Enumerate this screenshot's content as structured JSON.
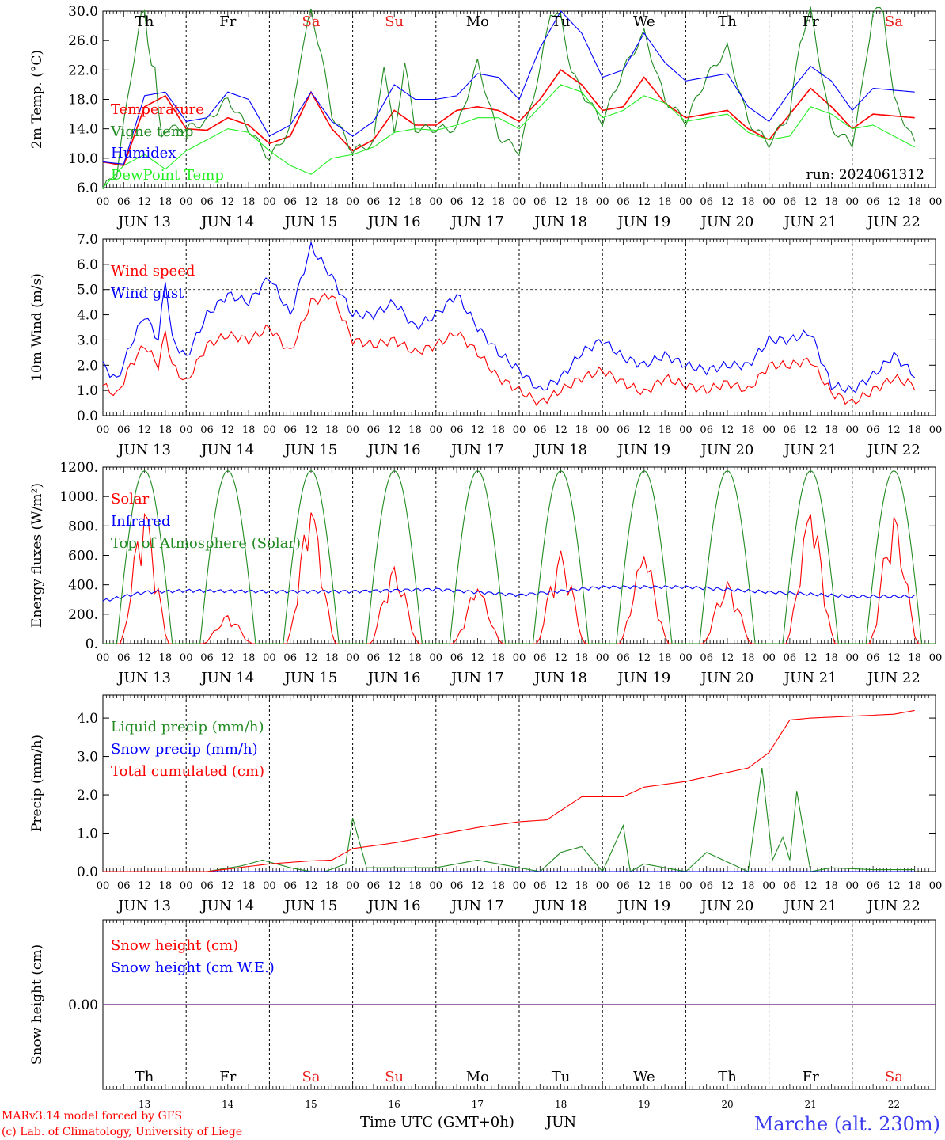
{
  "run_label": "run: 2024061312",
  "footer": {
    "model": "MARv3.14 model forced by GFS",
    "copyright": "(c) Lab. of Climatology, University of Liege",
    "axis_title": "Time UTC (GMT+0h)",
    "month": "JUN",
    "location": "Marche (alt. 230m)"
  },
  "colors": {
    "weekday": "#000000",
    "weekend": "#e8201c",
    "red": "#ff0000",
    "green": "#228b22",
    "blue": "#0000ff",
    "lightgreen": "#22ee22",
    "purple": "#7a3a8a",
    "location": "#3a3aee"
  },
  "days": [
    {
      "abbr": "Th",
      "date": "13",
      "label": "JUN 13",
      "weekend": false
    },
    {
      "abbr": "Fr",
      "date": "14",
      "label": "JUN 14",
      "weekend": false
    },
    {
      "abbr": "Sa",
      "date": "15",
      "label": "JUN 15",
      "weekend": true
    },
    {
      "abbr": "Su",
      "date": "16",
      "label": "JUN 16",
      "weekend": true
    },
    {
      "abbr": "Mo",
      "date": "17",
      "label": "JUN 17",
      "weekend": false
    },
    {
      "abbr": "Tu",
      "date": "18",
      "label": "JUN 18",
      "weekend": false
    },
    {
      "abbr": "We",
      "date": "19",
      "label": "JUN 19",
      "weekend": false
    },
    {
      "abbr": "Th",
      "date": "20",
      "label": "JUN 20",
      "weekend": false
    },
    {
      "abbr": "Fr",
      "date": "21",
      "label": "JUN 21",
      "weekend": false
    },
    {
      "abbr": "Sa",
      "date": "22",
      "label": "JUN 22",
      "weekend": true
    }
  ],
  "hour_ticks": [
    "00",
    "06",
    "12",
    "18"
  ],
  "chart_data": [
    {
      "type": "line",
      "ylabel": "2m Temp. (°C)",
      "ylim": [
        6,
        30
      ],
      "yticks": [
        "6.0",
        "10.0",
        "14.0",
        "18.0",
        "22.0",
        "26.0",
        "30.0"
      ],
      "x_unit": "hours since Jun 13 00 UTC",
      "series": [
        {
          "name": "Temperature",
          "color": "red",
          "x": [
            0,
            6,
            12,
            18,
            24,
            30,
            36,
            42,
            48,
            54,
            60,
            66,
            72,
            78,
            84,
            90,
            96,
            102,
            108,
            114,
            120,
            126,
            132,
            138,
            144,
            150,
            156,
            162,
            168,
            174,
            180,
            186,
            192,
            198,
            204,
            210,
            216,
            222,
            234
          ],
          "y": [
            9.5,
            9.0,
            17.0,
            18.5,
            14.0,
            13.8,
            15.5,
            14.5,
            12.0,
            13.0,
            19.0,
            14.0,
            11.0,
            12.5,
            16.5,
            14.5,
            14.5,
            16.5,
            17.0,
            16.5,
            15.0,
            18.0,
            22.0,
            20.0,
            16.5,
            17.0,
            21.0,
            17.5,
            15.5,
            16.0,
            16.5,
            14.0,
            12.5,
            16.0,
            19.5,
            17.0,
            14.0,
            16.0,
            15.5
          ]
        },
        {
          "name": "Vigne temp",
          "color": "green",
          "x": [
            0,
            4,
            8,
            11,
            12,
            13,
            14,
            15,
            16,
            17,
            18,
            21,
            24,
            30,
            36,
            42,
            48,
            54,
            57,
            60,
            63,
            66,
            72,
            78,
            81,
            84,
            87,
            90,
            96,
            102,
            108,
            114,
            120,
            126,
            129,
            132,
            135,
            138,
            144,
            150,
            156,
            162,
            168,
            174,
            180,
            186,
            192,
            198,
            201,
            204,
            207,
            210,
            216,
            219,
            222,
            225,
            228,
            234
          ],
          "y": [
            5.8,
            8.0,
            21.0,
            29.0,
            30.0,
            26.0,
            23.0,
            22.0,
            16.0,
            13.0,
            14.0,
            14.0,
            14.0,
            15.0,
            18.0,
            14.0,
            10.0,
            14.0,
            24.0,
            30.0,
            24.0,
            16.0,
            11.0,
            12.0,
            23.0,
            13.0,
            23.0,
            14.0,
            14.0,
            14.0,
            23.0,
            13.0,
            11.0,
            22.0,
            30.0,
            29.0,
            22.0,
            19.0,
            15.0,
            22.0,
            27.0,
            18.0,
            15.0,
            21.0,
            25.0,
            15.0,
            12.0,
            16.0,
            26.0,
            30.0,
            22.0,
            14.0,
            12.0,
            20.0,
            30.0,
            30.0,
            18.0,
            12.0
          ]
        },
        {
          "name": "Humidex",
          "color": "blue",
          "x": [
            0,
            6,
            12,
            18,
            24,
            30,
            36,
            42,
            48,
            54,
            60,
            66,
            72,
            78,
            84,
            90,
            96,
            102,
            108,
            114,
            120,
            126,
            132,
            138,
            144,
            150,
            156,
            162,
            168,
            174,
            180,
            186,
            192,
            198,
            204,
            210,
            216,
            222,
            234
          ],
          "y": [
            9.5,
            9.2,
            18.5,
            19.0,
            15.0,
            15.5,
            19.0,
            18.0,
            13.0,
            14.5,
            19.0,
            15.0,
            13.0,
            15.0,
            20.0,
            18.0,
            18.0,
            18.5,
            21.5,
            21.0,
            18.0,
            25.0,
            30.0,
            27.0,
            21.0,
            22.0,
            27.0,
            23.0,
            20.5,
            21.0,
            21.5,
            17.0,
            15.0,
            19.0,
            22.5,
            20.5,
            16.5,
            19.5,
            19.0
          ]
        },
        {
          "name": "DewPoint Temp",
          "color": "lightgreen",
          "x": [
            0,
            6,
            12,
            18,
            24,
            30,
            36,
            42,
            48,
            54,
            60,
            66,
            72,
            78,
            84,
            90,
            96,
            102,
            108,
            114,
            120,
            126,
            132,
            138,
            144,
            150,
            156,
            162,
            168,
            174,
            180,
            186,
            192,
            198,
            204,
            210,
            216,
            222,
            234
          ],
          "y": [
            6.0,
            9.0,
            10.5,
            8.5,
            11.0,
            12.5,
            14.0,
            13.5,
            11.0,
            9.0,
            7.8,
            10.0,
            10.5,
            11.5,
            13.5,
            14.0,
            13.8,
            14.5,
            15.5,
            15.5,
            14.0,
            17.0,
            20.0,
            19.0,
            15.5,
            16.5,
            18.5,
            17.5,
            15.0,
            15.5,
            16.0,
            13.5,
            12.5,
            13.0,
            17.0,
            16.0,
            14.0,
            14.5,
            11.5
          ]
        }
      ]
    },
    {
      "type": "line",
      "ylabel": "10m Wind (m/s)",
      "ylim": [
        0,
        7
      ],
      "yticks": [
        "0.0",
        "1.0",
        "2.0",
        "3.0",
        "4.0",
        "5.0",
        "6.0",
        "7.0"
      ],
      "hline": 5.0,
      "series": [
        {
          "name": "Wind speed",
          "color": "red",
          "x": [
            0,
            4,
            8,
            12,
            16,
            18,
            20,
            24,
            30,
            36,
            42,
            48,
            54,
            60,
            66,
            72,
            78,
            84,
            90,
            96,
            102,
            108,
            114,
            120,
            126,
            132,
            138,
            144,
            150,
            156,
            162,
            168,
            174,
            180,
            186,
            192,
            198,
            204,
            210,
            216,
            222,
            228,
            234
          ],
          "y": [
            1.2,
            0.8,
            2.0,
            2.8,
            2.0,
            3.3,
            2.0,
            1.3,
            2.8,
            3.2,
            3.0,
            3.5,
            2.5,
            4.5,
            4.8,
            3.0,
            2.8,
            3.0,
            2.5,
            2.8,
            3.3,
            2.5,
            1.5,
            1.0,
            0.5,
            1.0,
            1.5,
            1.8,
            1.3,
            0.9,
            1.5,
            1.2,
            1.0,
            1.3,
            1.0,
            2.0,
            2.0,
            2.2,
            0.9,
            0.5,
            1.0,
            1.5,
            1.2
          ]
        },
        {
          "name": "Wind gust",
          "color": "blue",
          "x": [
            0,
            4,
            8,
            12,
            16,
            18,
            20,
            24,
            30,
            36,
            42,
            48,
            54,
            60,
            66,
            72,
            78,
            84,
            90,
            96,
            102,
            108,
            114,
            120,
            126,
            132,
            138,
            144,
            150,
            156,
            162,
            168,
            174,
            180,
            186,
            192,
            198,
            204,
            210,
            216,
            222,
            228,
            234
          ],
          "y": [
            2.0,
            1.4,
            2.8,
            4.0,
            3.0,
            5.4,
            3.0,
            2.3,
            4.0,
            4.8,
            4.5,
            5.5,
            4.0,
            6.7,
            5.5,
            4.0,
            4.0,
            4.5,
            3.5,
            4.0,
            4.8,
            3.5,
            2.5,
            1.8,
            1.0,
            1.5,
            2.5,
            3.0,
            2.3,
            2.0,
            2.4,
            2.0,
            1.8,
            2.0,
            2.0,
            3.0,
            3.0,
            3.3,
            1.2,
            1.0,
            1.6,
            2.4,
            1.6
          ]
        }
      ]
    },
    {
      "type": "line",
      "ylabel": "Energy fluxes (W/m²)",
      "ylim": [
        0,
        1200
      ],
      "yticks": [
        "0.",
        "200.",
        "400.",
        "600.",
        "800.",
        "1000.",
        "1200."
      ],
      "series": [
        {
          "name": "Solar",
          "color": "red",
          "day_peaks": [
            880,
            190,
            890,
            520,
            370,
            630,
            590,
            420,
            880,
            860
          ]
        },
        {
          "name": "Infrared",
          "color": "blue",
          "x": [
            0,
            12,
            24,
            48,
            72,
            96,
            120,
            144,
            168,
            192,
            216,
            234
          ],
          "y": [
            290,
            350,
            360,
            355,
            355,
            370,
            330,
            385,
            385,
            350,
            320,
            320
          ]
        },
        {
          "name": "Top of Atmosphere (Solar)",
          "color": "green",
          "peak": 1175,
          "day_hours": [
            4,
            20
          ]
        }
      ]
    },
    {
      "type": "line",
      "ylabel": "Precip (mm/h)",
      "ylim": [
        0,
        4.6
      ],
      "yticks": [
        "0.0",
        "1.0",
        "2.0",
        "3.0",
        "4.0"
      ],
      "series": [
        {
          "name": "Liquid precip (mm/h)",
          "color": "green",
          "x": [
            0,
            30,
            40,
            46,
            54,
            60,
            64,
            70,
            72,
            76,
            96,
            108,
            126,
            132,
            138,
            144,
            150,
            152,
            156,
            168,
            174,
            186,
            190,
            193,
            196,
            198,
            200,
            204,
            210,
            222,
            234
          ],
          "y": [
            0,
            0,
            0.15,
            0.3,
            0.1,
            0,
            0,
            0.2,
            1.4,
            0.1,
            0.1,
            0.3,
            0,
            0.5,
            0.65,
            0,
            1.2,
            0,
            0.2,
            0,
            0.5,
            0,
            2.7,
            0.3,
            0.9,
            0.3,
            2.1,
            0,
            0.1,
            0.05,
            0.05
          ]
        },
        {
          "name": "Snow precip (mm/h)",
          "color": "blue",
          "x": [
            0,
            234
          ],
          "y": [
            0,
            0
          ]
        },
        {
          "name": "Total cumulated (cm)",
          "color": "red",
          "x": [
            0,
            30,
            48,
            60,
            66,
            72,
            84,
            96,
            108,
            120,
            128,
            138,
            150,
            156,
            168,
            186,
            192,
            198,
            204,
            216,
            228,
            234
          ],
          "y": [
            0,
            0,
            0.2,
            0.28,
            0.3,
            0.6,
            0.75,
            0.95,
            1.15,
            1.3,
            1.35,
            1.95,
            1.95,
            2.2,
            2.35,
            2.7,
            3.1,
            3.95,
            4.0,
            4.05,
            4.1,
            4.2
          ]
        }
      ]
    },
    {
      "type": "line",
      "ylabel": "Snow height (cm)",
      "ylim": [
        -1,
        1
      ],
      "yticks": [
        "0.00"
      ],
      "series": [
        {
          "name": "Snow height (cm)",
          "color": "red",
          "x": [
            0,
            240
          ],
          "y": [
            0,
            0
          ]
        },
        {
          "name": "Snow height (cm W.E.)",
          "color": "blue",
          "x": [
            0,
            240
          ],
          "y": [
            0,
            0
          ]
        }
      ]
    }
  ]
}
